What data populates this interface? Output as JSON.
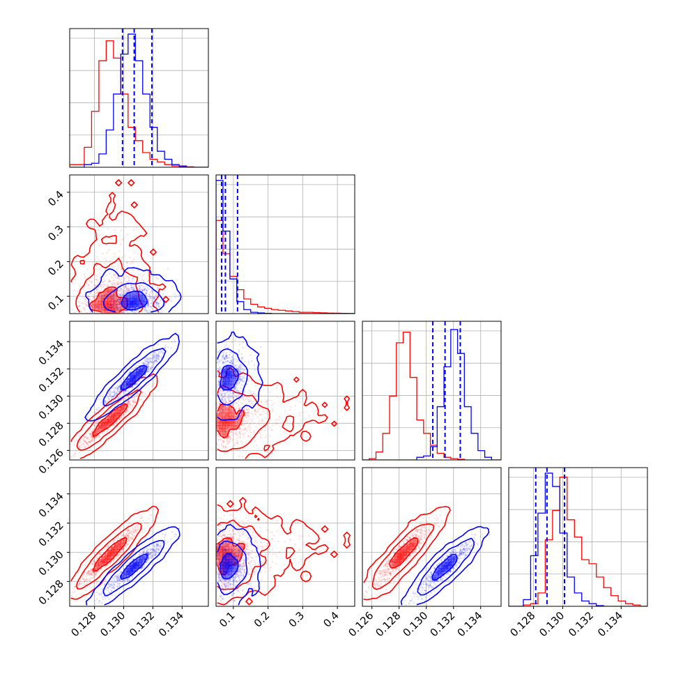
{
  "chart_data": {
    "type": "corner",
    "grid": true,
    "colors": {
      "red": "#ff0000",
      "blue": "#0000ff",
      "grid": "#b0b0b0",
      "frame": "#000000"
    },
    "parameters": [
      {
        "range": [
          0.1263,
          0.1358
        ],
        "ticks": [
          0.128,
          0.13,
          0.132,
          0.134
        ],
        "tick_labels": [
          "0.128",
          "0.130",
          "0.132",
          "0.134"
        ]
      },
      {
        "range": [
          0.05,
          0.45
        ],
        "ticks": [
          0.1,
          0.2,
          0.3,
          0.4
        ],
        "tick_labels": [
          "0.1",
          "0.2",
          "0.3",
          "0.4"
        ]
      },
      {
        "range": [
          0.1253,
          0.1355
        ],
        "ticks": [
          0.126,
          0.128,
          0.13,
          0.132,
          0.134
        ],
        "tick_labels": [
          "0.126",
          "0.128",
          "0.130",
          "0.132",
          "0.134"
        ]
      },
      {
        "range": [
          0.1263,
          0.1358
        ],
        "ticks": [
          0.128,
          0.13,
          0.132,
          0.134
        ],
        "tick_labels": [
          "0.128",
          "0.130",
          "0.132",
          "0.134"
        ]
      }
    ],
    "series": [
      {
        "color": "red",
        "means": [
          0.129,
          0.09,
          0.1282,
          0.1298
        ],
        "stds": [
          0.0011,
          0.06,
          0.0011,
          0.0011
        ],
        "corr": [
          [
            1,
            0.15,
            0.95,
            0.95
          ],
          [
            0.15,
            1,
            0.15,
            0.15
          ],
          [
            0.95,
            0.15,
            1,
            0.92
          ],
          [
            0.95,
            0.15,
            0.92,
            1
          ]
        ]
      },
      {
        "color": "blue",
        "means": [
          0.1307,
          0.088,
          0.1314,
          0.129
        ],
        "stds": [
          0.001,
          0.03,
          0.001,
          0.0009
        ],
        "corr": [
          [
            1,
            0.05,
            0.95,
            0.95
          ],
          [
            0.05,
            1,
            0.05,
            0.05
          ],
          [
            0.95,
            0.05,
            1,
            0.92
          ],
          [
            0.95,
            0.05,
            0.92,
            1
          ]
        ]
      }
    ],
    "histograms": [
      {
        "edges": [
          0.1263,
          0.1268,
          0.1273,
          0.1278,
          0.1283,
          0.1288,
          0.1293,
          0.1298,
          0.1303,
          0.1308,
          0.1313,
          0.1318,
          0.1323,
          0.1328,
          0.1333,
          0.1338,
          0.1343,
          0.1348,
          0.1353,
          0.1358
        ],
        "red": [
          0.02,
          0.02,
          0.15,
          0.42,
          0.8,
          0.95,
          0.82,
          0.55,
          0.3,
          0.2,
          0.11,
          0.06,
          0.04,
          0.02,
          0.01,
          0.005,
          0.003,
          0,
          0
        ],
        "blue": [
          0,
          0,
          0.02,
          0.03,
          0.1,
          0.28,
          0.55,
          0.85,
          1.0,
          0.8,
          0.55,
          0.3,
          0.12,
          0.06,
          0.02,
          0.01,
          0,
          0,
          0
        ],
        "quantiles": [
          0.12992,
          0.13072,
          0.13193
        ]
      },
      {
        "edges": [
          0.05,
          0.07,
          0.09,
          0.11,
          0.13,
          0.15,
          0.17,
          0.19,
          0.21,
          0.23,
          0.25,
          0.27,
          0.29,
          0.31,
          0.33,
          0.35,
          0.37,
          0.39,
          0.41,
          0.43,
          0.45
        ],
        "red": [
          0.7,
          0.45,
          0.28,
          0.18,
          0.11,
          0.07,
          0.05,
          0.04,
          0.03,
          0.025,
          0.02,
          0.015,
          0.01,
          0.01,
          0.008,
          0.006,
          0.004,
          0.003,
          0.002,
          0.001
        ],
        "blue": [
          1.0,
          0.62,
          0.26,
          0.09,
          0.03,
          0.01,
          0.005,
          0.002,
          0,
          0,
          0,
          0,
          0,
          0,
          0,
          0,
          0,
          0,
          0,
          0
        ],
        "quantiles": [
          0.066,
          0.077,
          0.112
        ]
      },
      {
        "edges": [
          0.1253,
          0.1258,
          0.1263,
          0.1268,
          0.1273,
          0.1278,
          0.1283,
          0.1288,
          0.1293,
          0.1298,
          0.1303,
          0.1308,
          0.1313,
          0.1318,
          0.1323,
          0.1328,
          0.1333,
          0.1338,
          0.1343,
          0.1348,
          0.1355
        ],
        "red": [
          0,
          0.01,
          0.06,
          0.2,
          0.48,
          0.88,
          0.96,
          0.62,
          0.3,
          0.2,
          0.11,
          0.05,
          0.02,
          0.01,
          0.005,
          0,
          0,
          0,
          0,
          0
        ],
        "blue": [
          0,
          0,
          0,
          0,
          0,
          0,
          0,
          0,
          0.02,
          0.03,
          0.1,
          0.4,
          0.7,
          0.98,
          0.8,
          0.4,
          0.2,
          0.07,
          0.02,
          0
        ],
        "quantiles": [
          0.13048,
          0.13138,
          0.1325
        ]
      },
      {
        "edges": [
          0.1263,
          0.1268,
          0.1273,
          0.1278,
          0.1283,
          0.1288,
          0.1293,
          0.1298,
          0.1303,
          0.1308,
          0.1313,
          0.1318,
          0.1323,
          0.1328,
          0.1333,
          0.1338,
          0.1343,
          0.1348,
          0.1353,
          0.1358
        ],
        "red": [
          0,
          0,
          0.01,
          0.02,
          0.1,
          0.5,
          0.72,
          0.97,
          0.65,
          0.52,
          0.35,
          0.32,
          0.22,
          0.14,
          0.08,
          0.04,
          0.02,
          0.01,
          0
        ],
        "blue": [
          0,
          0,
          0.05,
          0.38,
          0.7,
          1.0,
          0.9,
          0.55,
          0.22,
          0.1,
          0.04,
          0.02,
          0.005,
          0,
          0,
          0,
          0,
          0,
          0
        ],
        "quantiles": [
          0.12815,
          0.12892,
          0.13012
        ]
      }
    ]
  }
}
